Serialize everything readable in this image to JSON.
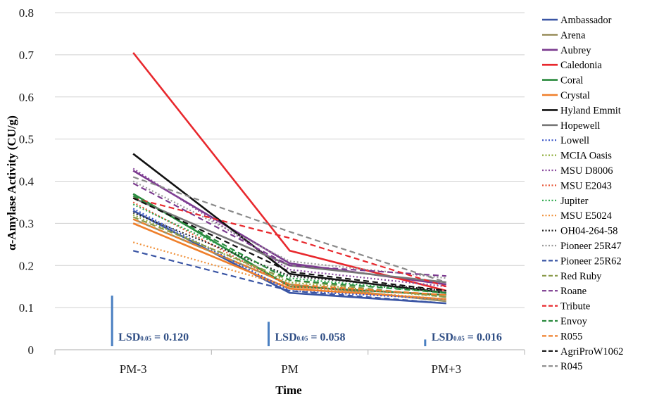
{
  "chart_data": {
    "type": "line",
    "title": "",
    "xlabel": "Time",
    "ylabel": "α-Amylase Activity (CU/g)",
    "categories": [
      "PM-3",
      "PM",
      "PM+3"
    ],
    "ylim": [
      0,
      0.8
    ],
    "yticks": [
      "0",
      "0.1",
      "0.2",
      "0.3",
      "0.4",
      "0.5",
      "0.6",
      "0.7",
      "0.8"
    ],
    "grid": "horizontal",
    "legend_position": "right",
    "series": [
      {
        "name": "Ambassador",
        "values": [
          0.33,
          0.135,
          0.11
        ],
        "color": "#3a55a4",
        "dash": "solid"
      },
      {
        "name": "Arena",
        "values": [
          0.31,
          0.155,
          0.115
        ],
        "color": "#9b9160",
        "dash": "solid"
      },
      {
        "name": "Aubrey",
        "values": [
          0.425,
          0.205,
          0.155
        ],
        "color": "#7a3a8e",
        "dash": "solid"
      },
      {
        "name": "Caledonia",
        "values": [
          0.705,
          0.235,
          0.14
        ],
        "color": "#e8282d",
        "dash": "solid"
      },
      {
        "name": "Coral",
        "values": [
          0.37,
          0.15,
          0.13
        ],
        "color": "#2a8a3e",
        "dash": "solid"
      },
      {
        "name": "Crystal",
        "values": [
          0.3,
          0.145,
          0.12
        ],
        "color": "#ef7f2a",
        "dash": "solid"
      },
      {
        "name": "Hyland Emmit",
        "values": [
          0.465,
          0.18,
          0.135
        ],
        "color": "#111111",
        "dash": "solid"
      },
      {
        "name": "Hopewell",
        "values": [
          0.36,
          0.2,
          0.16
        ],
        "color": "#777777",
        "dash": "solid"
      },
      {
        "name": "Lowell",
        "values": [
          0.335,
          0.14,
          0.12
        ],
        "color": "#3a55c8",
        "dash": "dotted"
      },
      {
        "name": "MCIA Oasis",
        "values": [
          0.32,
          0.16,
          0.125
        ],
        "color": "#8fae3c",
        "dash": "dotted"
      },
      {
        "name": "MSU D8006",
        "values": [
          0.43,
          0.19,
          0.15
        ],
        "color": "#8a4a9e",
        "dash": "dotted"
      },
      {
        "name": "MSU E2043",
        "values": [
          0.35,
          0.15,
          0.13
        ],
        "color": "#e8583a",
        "dash": "dotted"
      },
      {
        "name": "Jupiter",
        "values": [
          0.345,
          0.17,
          0.135
        ],
        "color": "#2aa84a",
        "dash": "dotted"
      },
      {
        "name": "MSU E5024",
        "values": [
          0.255,
          0.15,
          0.12
        ],
        "color": "#f0913a",
        "dash": "dotted"
      },
      {
        "name": "OH04-264-58",
        "values": [
          0.325,
          0.175,
          0.14
        ],
        "color": "#222222",
        "dash": "dotted"
      },
      {
        "name": "Pioneer 25R47",
        "values": [
          0.4,
          0.21,
          0.17
        ],
        "color": "#999999",
        "dash": "dotted"
      },
      {
        "name": "Pioneer 25R62",
        "values": [
          0.235,
          0.14,
          0.11
        ],
        "color": "#3a55a4",
        "dash": "dashed"
      },
      {
        "name": "Red Ruby",
        "values": [
          0.315,
          0.165,
          0.125
        ],
        "color": "#8a9a4a",
        "dash": "dashed"
      },
      {
        "name": "Roane",
        "values": [
          0.395,
          0.2,
          0.175
        ],
        "color": "#7a3a8e",
        "dash": "dashed"
      },
      {
        "name": "Tribute",
        "values": [
          0.36,
          0.265,
          0.15
        ],
        "color": "#e8282d",
        "dash": "dashed"
      },
      {
        "name": "Envoy",
        "values": [
          0.365,
          0.165,
          0.135
        ],
        "color": "#2a8a3e",
        "dash": "dashed"
      },
      {
        "name": "R055",
        "values": [
          0.31,
          0.155,
          0.13
        ],
        "color": "#ef7f2a",
        "dash": "dashed"
      },
      {
        "name": "AgriProW1062",
        "values": [
          0.36,
          0.185,
          0.14
        ],
        "color": "#111111",
        "dash": "dashed"
      },
      {
        "name": "R045",
        "values": [
          0.41,
          0.28,
          0.16
        ],
        "color": "#8a8a8a",
        "dash": "dashed"
      }
    ],
    "lsd": [
      {
        "category": "PM-3",
        "value": 0.12,
        "label_main": "LSD",
        "label_sub": "0.05",
        "label_value": " = 0.120"
      },
      {
        "category": "PM",
        "value": 0.058,
        "label_main": "LSD",
        "label_sub": "0.05",
        "label_value": " = 0.058"
      },
      {
        "category": "PM+3",
        "value": 0.016,
        "label_main": "LSD",
        "label_sub": "0.05",
        "label_value": " = 0.016"
      }
    ],
    "lsd_color": "#4a7fc1",
    "gridline_color": "#d0d0d0",
    "axis_color": "#bdbdbd"
  }
}
